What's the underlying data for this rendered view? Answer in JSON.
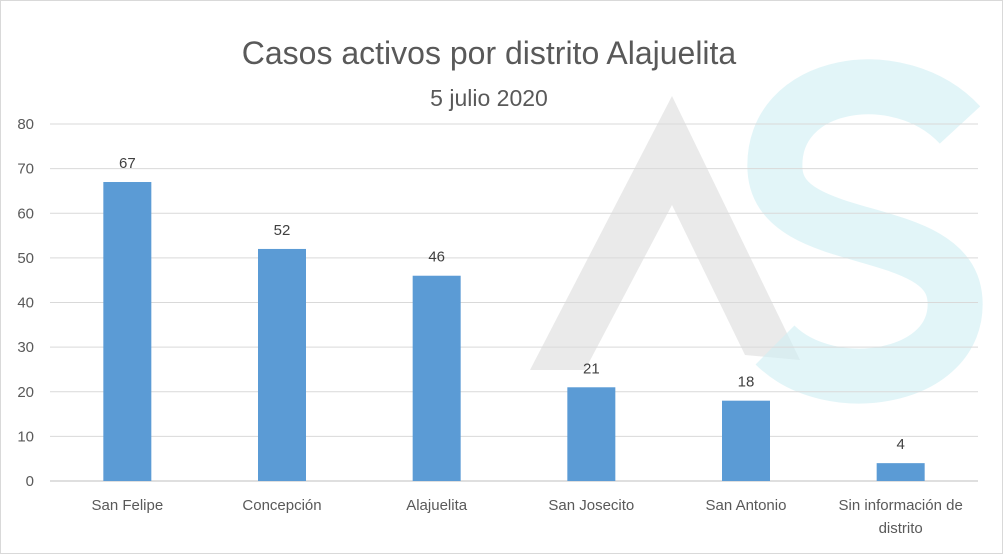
{
  "chart_data": {
    "type": "bar",
    "title": "Casos activos por distrito Alajuelita",
    "subtitle": "5 julio 2020",
    "categories": [
      [
        "San Felipe"
      ],
      [
        "Concepción"
      ],
      [
        "Alajuelita"
      ],
      [
        "San Josecito"
      ],
      [
        "San Antonio"
      ],
      [
        "Sin información de",
        "distrito"
      ]
    ],
    "values": [
      67,
      52,
      46,
      21,
      18,
      4
    ],
    "ylim": [
      0,
      80
    ],
    "yticks": [
      "0",
      "10",
      "20",
      "30",
      "40",
      "50",
      "60",
      "70",
      "80"
    ],
    "grid": true,
    "bar_color": "#5b9bd5",
    "watermark": "AS-logo"
  }
}
